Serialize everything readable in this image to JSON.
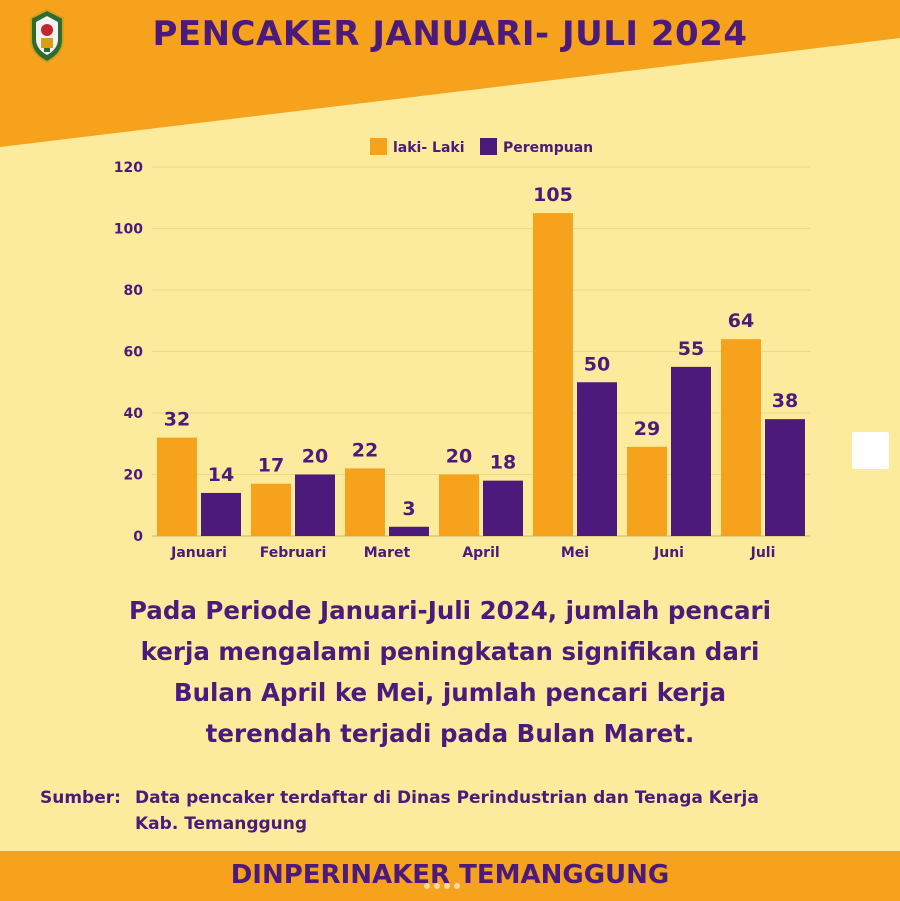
{
  "header": {
    "title": "PENCAKER JANUARI- JULI 2024"
  },
  "colors": {
    "background": "#FCEB9C",
    "orange": "#F6A21C",
    "purple": "#4B1A7A",
    "grid": "#EBD98D"
  },
  "chart_data": {
    "type": "bar",
    "categories": [
      "Januari",
      "Februari",
      "Maret",
      "April",
      "Mei",
      "Juni",
      "Juli"
    ],
    "series": [
      {
        "name": "laki- Laki",
        "color": "#F6A21C",
        "values": [
          32,
          17,
          22,
          20,
          105,
          29,
          64
        ]
      },
      {
        "name": "Perempuan",
        "color": "#4B1A7A",
        "values": [
          14,
          20,
          3,
          18,
          50,
          55,
          38
        ]
      }
    ],
    "ylim": [
      0,
      120
    ],
    "yticks": [
      0,
      20,
      40,
      60,
      80,
      100,
      120
    ],
    "grid": true,
    "legend": "top-center",
    "data_labels": true
  },
  "summary": {
    "lines": [
      "Pada Periode Januari-Juli 2024, jumlah pencari",
      "kerja mengalami peningkatan signifikan dari",
      "Bulan April ke Mei, jumlah pencari kerja",
      "terendah terjadi pada Bulan Maret."
    ]
  },
  "source": {
    "label": "Sumber:",
    "lines": [
      "Data pencaker terdaftar di Dinas Perindustrian dan Tenaga Kerja",
      "Kab. Temanggung"
    ]
  },
  "footer": {
    "text": "DINPERINAKER TEMANGGUNG"
  }
}
